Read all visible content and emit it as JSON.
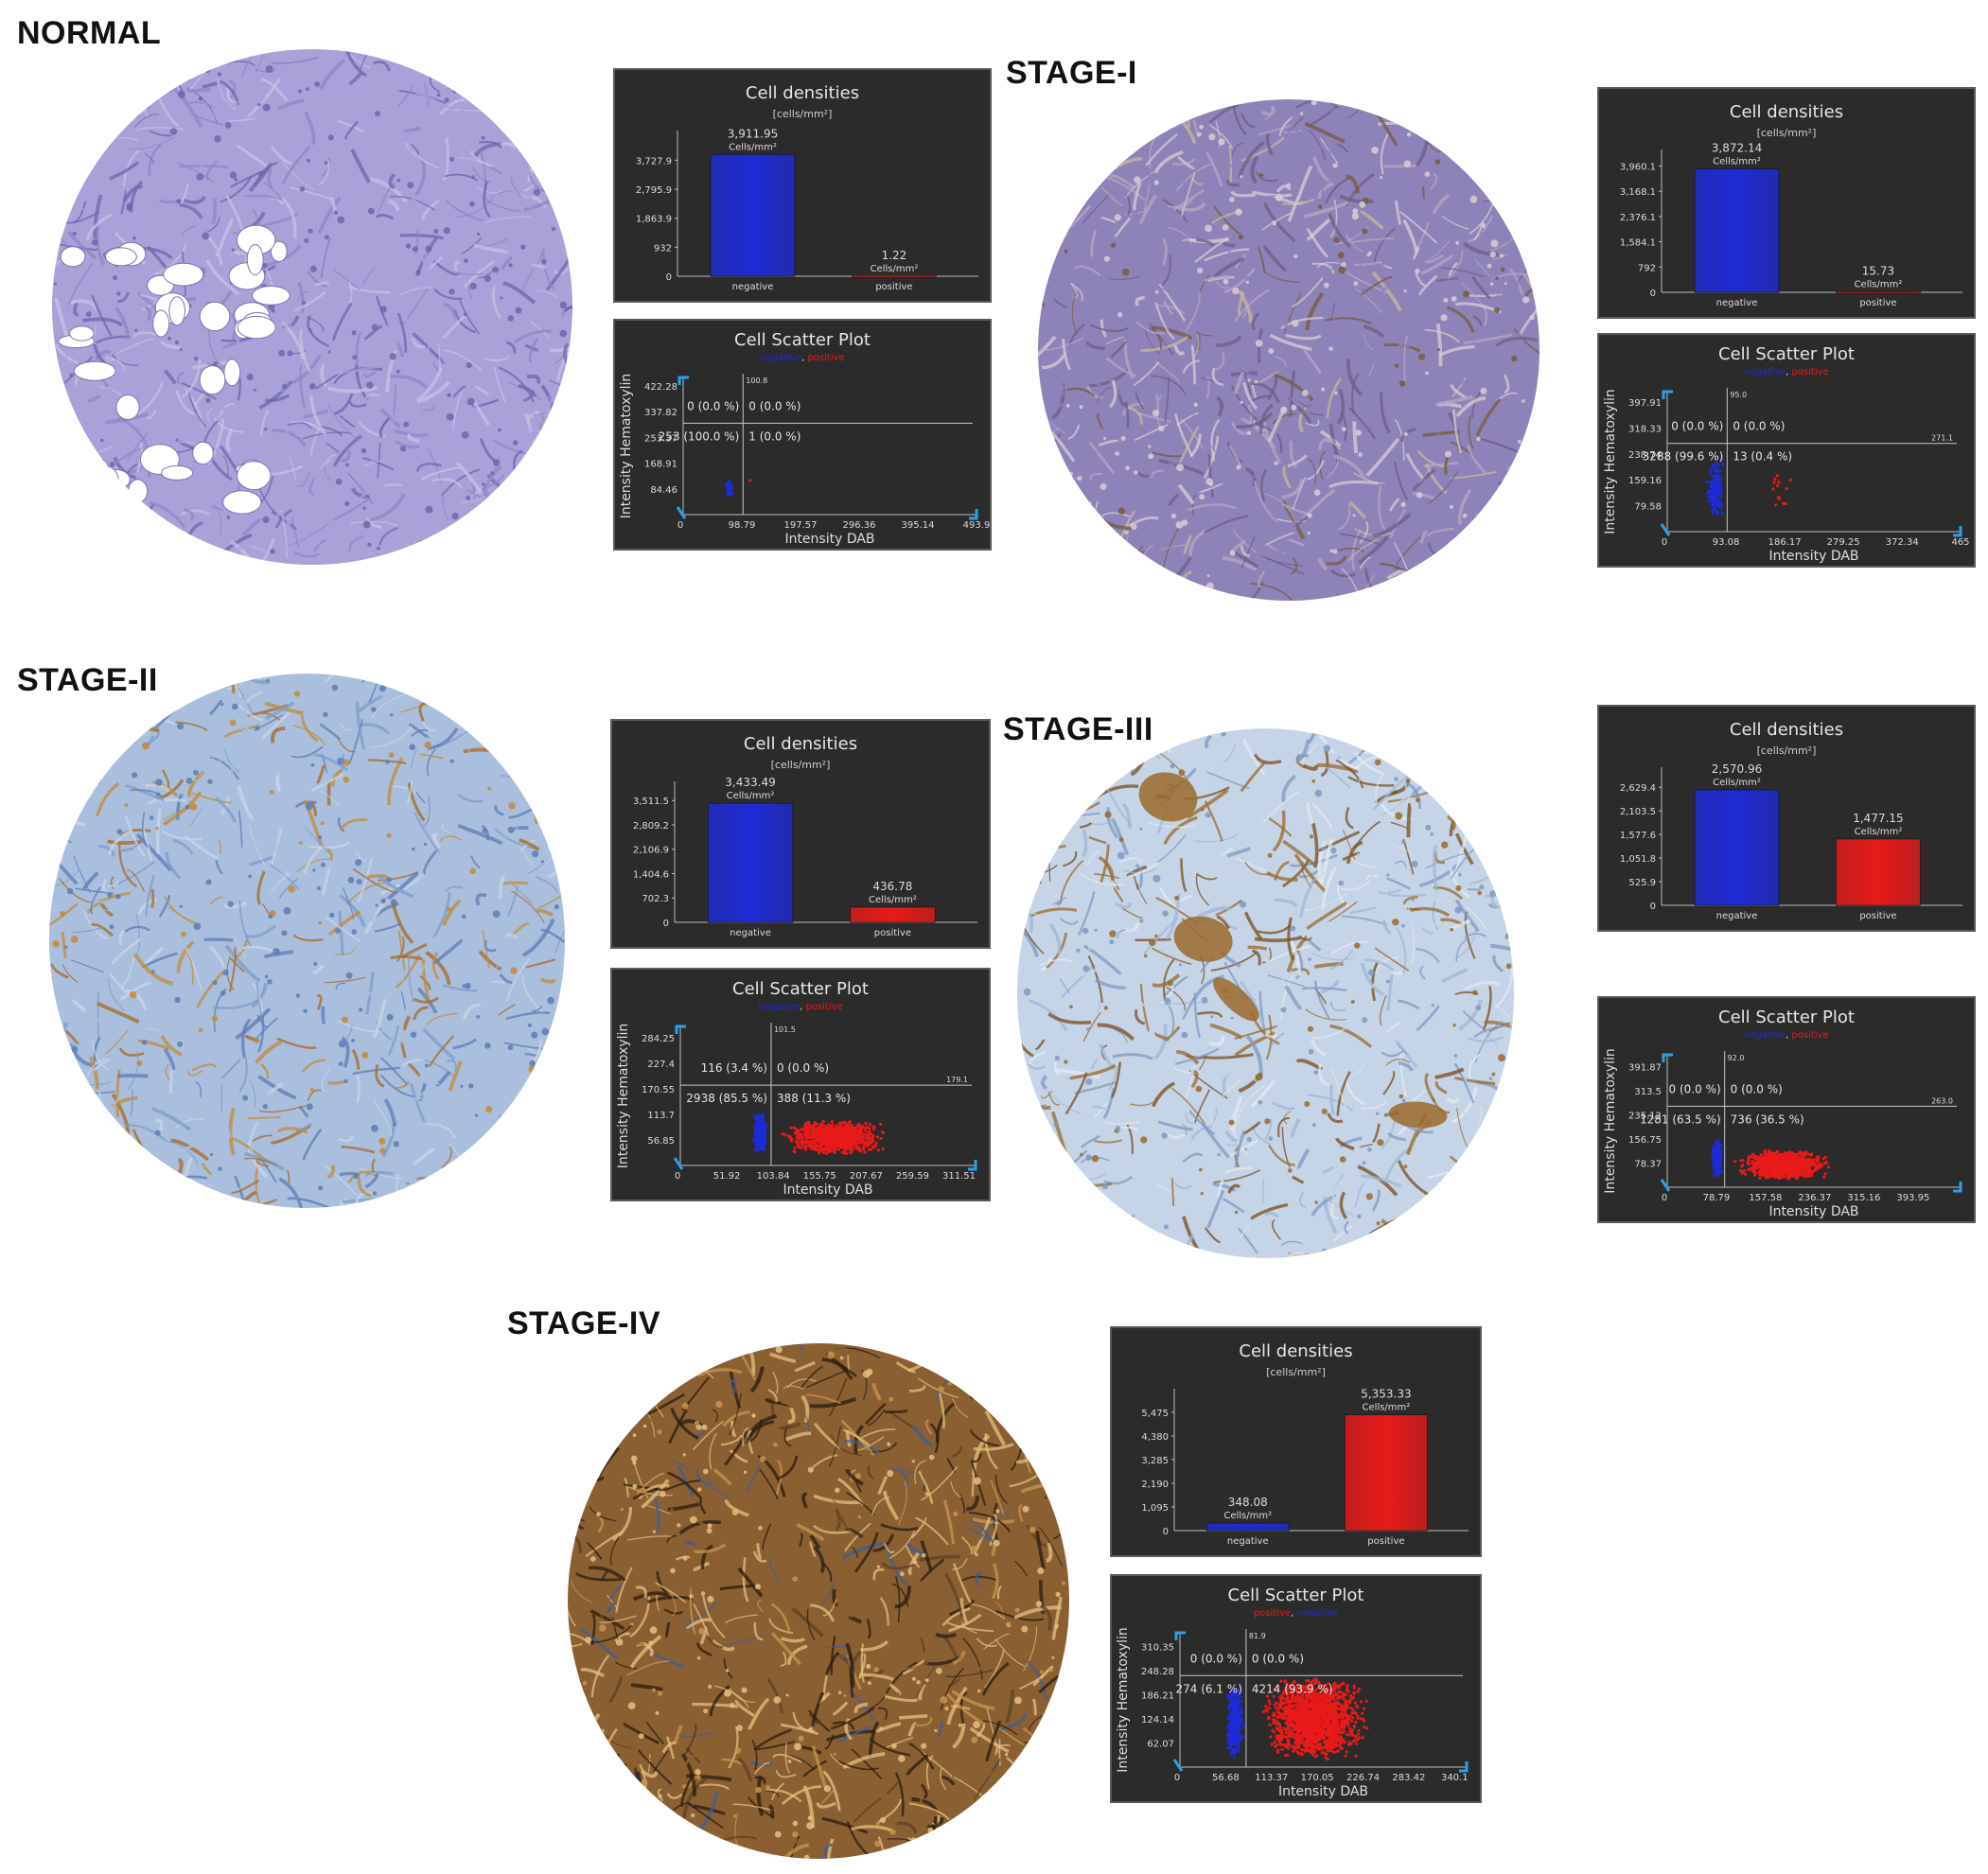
{
  "common": {
    "density_title": "Cell densities",
    "density_unit": "[cells/mm²]",
    "cells_unit": "Cells/mm²",
    "scatter_title": "Cell Scatter Plot",
    "scatter_xlabel": "Intensity DAB",
    "scatter_ylabel": "Intensity Hematoxylin",
    "cat_negative": "negative",
    "cat_positive": "positive",
    "legend_negative": "negative",
    "legend_positive": "positive",
    "legend_sep": ", "
  },
  "colors": {
    "negative": "#1f2bd6",
    "positive": "#e81a1a",
    "q_upper_left": "#e0c020",
    "q_upper_right": "#3ec13e",
    "q_lower_left": "#e040e0",
    "q_lower_right": "#38c8c8"
  },
  "panels": [
    {
      "stage": "NORMAL",
      "chart_data": [
        {
          "type": "bar",
          "title": "Cell densities",
          "categories": [
            "negative",
            "positive"
          ],
          "values": [
            3911.95,
            1.22
          ],
          "value_labels": [
            "3,911.95",
            "1.22"
          ],
          "yticks": [
            "932",
            "1,863.9",
            "2,795.9",
            "3,727.9"
          ],
          "ylim": [
            0,
            4500
          ]
        },
        {
          "type": "scatter",
          "title": "Cell Scatter Plot",
          "xlabel": "Intensity DAB",
          "ylabel": "Intensity Hematoxylin",
          "xticks": [
            "98.79",
            "197.57",
            "296.36",
            "395.14",
            "493.9"
          ],
          "yticks": [
            "84.46",
            "168.91",
            "253.37",
            "337.82",
            "422.28"
          ],
          "xlim": [
            0,
            493.9
          ],
          "ylim": [
            0,
            450
          ],
          "x_threshold": 100.8,
          "x_threshold_label": "100.8",
          "y_threshold": 300,
          "y_threshold_label": "",
          "legend_order": [
            "negative",
            "positive"
          ],
          "quadrants": {
            "upper_left": "0 (0.0 %)",
            "upper_right": "0 (0.0 %)",
            "lower_left": "253 (100.0 %)",
            "lower_right": "1 (0.0 %)"
          },
          "clusters": [
            {
              "series": "negative",
              "x": [
                70,
                85
              ],
              "y": [
                55,
                115
              ],
              "count": 26
            },
            {
              "series": "positive",
              "x": [
                110,
                115
              ],
              "y": [
                100,
                120
              ],
              "count": 1
            }
          ]
        }
      ]
    },
    {
      "stage": "STAGE-I",
      "chart_data": [
        {
          "type": "bar",
          "title": "Cell densities",
          "categories": [
            "negative",
            "positive"
          ],
          "values": [
            3872.14,
            15.73
          ],
          "value_labels": [
            "3,872.14",
            "15.73"
          ],
          "yticks": [
            "792",
            "1,584.1",
            "2,376.1",
            "3,168.1",
            "3,960.1"
          ],
          "ylim": [
            0,
            4300
          ]
        },
        {
          "type": "scatter",
          "title": "Cell Scatter Plot",
          "xlabel": "Intensity DAB",
          "ylabel": "Intensity Hematoxylin",
          "xticks": [
            "93.08",
            "186.17",
            "279.25",
            "372.34",
            "465"
          ],
          "yticks": [
            "79.58",
            "159.16",
            "238.74",
            "318.33",
            "397.91"
          ],
          "xlim": [
            0,
            465
          ],
          "ylim": [
            0,
            430
          ],
          "x_threshold": 95.0,
          "x_threshold_label": "95.0",
          "y_threshold": 271.1,
          "y_threshold_label": "271.1",
          "legend_order": [
            "negative",
            "positive"
          ],
          "quadrants": {
            "upper_left": "0 (0.0 %)",
            "upper_right": "0 (0.0 %)",
            "lower_left": "3288 (99.6 %)",
            "lower_right": "13 (0.4 %)"
          },
          "clusters": [
            {
              "series": "negative",
              "x": [
                60,
                92
              ],
              "y": [
                40,
                230
              ],
              "count": 150
            },
            {
              "series": "positive",
              "x": [
                150,
                205
              ],
              "y": [
                60,
                210
              ],
              "count": 13
            }
          ]
        }
      ]
    },
    {
      "stage": "STAGE-II",
      "chart_data": [
        {
          "type": "bar",
          "title": "Cell densities",
          "categories": [
            "negative",
            "positive"
          ],
          "values": [
            3433.49,
            436.78
          ],
          "value_labels": [
            "3,433.49",
            "436.78"
          ],
          "yticks": [
            "702.3",
            "1,404.6",
            "2,106.9",
            "2,809.2",
            "3,511.5"
          ],
          "ylim": [
            0,
            3900
          ]
        },
        {
          "type": "scatter",
          "title": "Cell Scatter Plot",
          "xlabel": "Intensity DAB",
          "ylabel": "Intensity Hematoxylin",
          "xticks": [
            "51.92",
            "103.84",
            "155.75",
            "207.67",
            "259.59",
            "311.51"
          ],
          "yticks": [
            "56.85",
            "113.7",
            "170.55",
            "227.4",
            "284.25"
          ],
          "xlim": [
            0,
            330
          ],
          "ylim": [
            0,
            310
          ],
          "x_threshold": 101.5,
          "x_threshold_label": "101.5",
          "y_threshold": 179.1,
          "y_threshold_label": "179.1",
          "legend_order": [
            "negative",
            "positive"
          ],
          "quadrants": {
            "upper_left": "116 (3.4 %)",
            "upper_right": "0 (0.0 %)",
            "lower_left": "2938 (85.5 %)",
            "lower_right": "388 (11.3 %)"
          },
          "clusters": [
            {
              "series": "negative",
              "x": [
                80,
                98
              ],
              "y": [
                25,
                120
              ],
              "count": 250
            },
            {
              "series": "positive",
              "x": [
                110,
                235
              ],
              "y": [
                25,
                100
              ],
              "count": 900
            }
          ]
        }
      ]
    },
    {
      "stage": "STAGE-III",
      "chart_data": [
        {
          "type": "bar",
          "title": "Cell densities",
          "categories": [
            "negative",
            "positive"
          ],
          "values": [
            2570.96,
            1477.15
          ],
          "value_labels": [
            "2,570.96",
            "1,477.15"
          ],
          "yticks": [
            "525.9",
            "1,051.8",
            "1,577.6",
            "2,103.5",
            "2,629.4"
          ],
          "ylim": [
            0,
            2950
          ]
        },
        {
          "type": "scatter",
          "title": "Cell Scatter Plot",
          "xlabel": "Intensity DAB",
          "ylabel": "Intensity Hematoxylin",
          "xticks": [
            "78.79",
            "157.58",
            "236.37",
            "315.16",
            "393.95"
          ],
          "yticks": [
            "78.37",
            "156.75",
            "235.12",
            "313.5",
            "391.87"
          ],
          "xlim": [
            0,
            470
          ],
          "ylim": [
            0,
            430
          ],
          "x_threshold": 92.0,
          "x_threshold_label": "92.0",
          "y_threshold": 263.0,
          "y_threshold_label": "263.0",
          "legend_order": [
            "negative",
            "positive"
          ],
          "quadrants": {
            "upper_left": "0 (0.0 %)",
            "upper_right": "0 (0.0 %)",
            "lower_left": "1281 (63.5 %)",
            "lower_right": "736 (36.5 %)"
          },
          "clusters": [
            {
              "series": "negative",
              "x": [
                70,
                90
              ],
              "y": [
                30,
                160
              ],
              "count": 180
            },
            {
              "series": "positive",
              "x": [
                105,
                270
              ],
              "y": [
                25,
                120
              ],
              "count": 900
            }
          ]
        }
      ]
    },
    {
      "stage": "STAGE-IV",
      "chart_data": [
        {
          "type": "bar",
          "title": "Cell densities",
          "categories": [
            "negative",
            "positive"
          ],
          "values": [
            348.08,
            5353.33
          ],
          "value_labels": [
            "348.08",
            "5,353.33"
          ],
          "yticks": [
            "1,095",
            "2,190",
            "3,285",
            "4,380",
            "5,475"
          ],
          "ylim": [
            0,
            6300
          ]
        },
        {
          "type": "scatter",
          "title": "Cell Scatter Plot",
          "xlabel": "Intensity DAB",
          "ylabel": "Intensity Hematoxylin",
          "xticks": [
            "56.68",
            "113.37",
            "170.05",
            "226.74",
            "283.42",
            "340.1"
          ],
          "yticks": [
            "62.07",
            "124.14",
            "186.21",
            "248.28",
            "310.35"
          ],
          "xlim": [
            0,
            355
          ],
          "ylim": [
            0,
            345
          ],
          "x_threshold": 81.9,
          "x_threshold_label": "81.9",
          "y_threshold": 235,
          "y_threshold_label": "",
          "legend_order": [
            "positive",
            "negative"
          ],
          "quadrants": {
            "upper_left": "0 (0.0 %)",
            "upper_right": "0 (0.0 %)",
            "lower_left": "274 (6.1 %)",
            "lower_right": "4214 (93.9 %)"
          },
          "clusters": [
            {
              "series": "negative",
              "x": [
                55,
                80
              ],
              "y": [
                20,
                210
              ],
              "count": 300
            },
            {
              "series": "positive",
              "x": [
                95,
                240
              ],
              "y": [
                20,
                230
              ],
              "count": 1600
            }
          ]
        }
      ]
    }
  ],
  "tissue": [
    {
      "stage": "NORMAL",
      "palette": [
        "#8f86c6",
        "#a9a2d8",
        "#6f66b0",
        "#c7c1e6",
        "#5b53a0",
        "#b59a84"
      ],
      "brown_fraction": 0.01
    },
    {
      "stage": "STAGE-I",
      "palette": [
        "#b7a6c4",
        "#8d83b8",
        "#d8cdd6",
        "#6d5e86",
        "#7a5a3c",
        "#c9b79b"
      ],
      "brown_fraction": 0.15
    },
    {
      "stage": "STAGE-II",
      "palette": [
        "#7f9bc8",
        "#a9bfdd",
        "#5d7bb5",
        "#c9d6e8",
        "#c48a38",
        "#a86a22"
      ],
      "brown_fraction": 0.3
    },
    {
      "stage": "STAGE-III",
      "palette": [
        "#9fb7d6",
        "#c5d4e6",
        "#7f98c2",
        "#e3eaf2",
        "#9a6a2c",
        "#7a4e1c"
      ],
      "brown_fraction": 0.35
    },
    {
      "stage": "STAGE-IV",
      "palette": [
        "#5c4024",
        "#8a6032",
        "#c9944e",
        "#3f5c98",
        "#e6c080",
        "#2a1c10"
      ],
      "brown_fraction": 0.7
    }
  ]
}
